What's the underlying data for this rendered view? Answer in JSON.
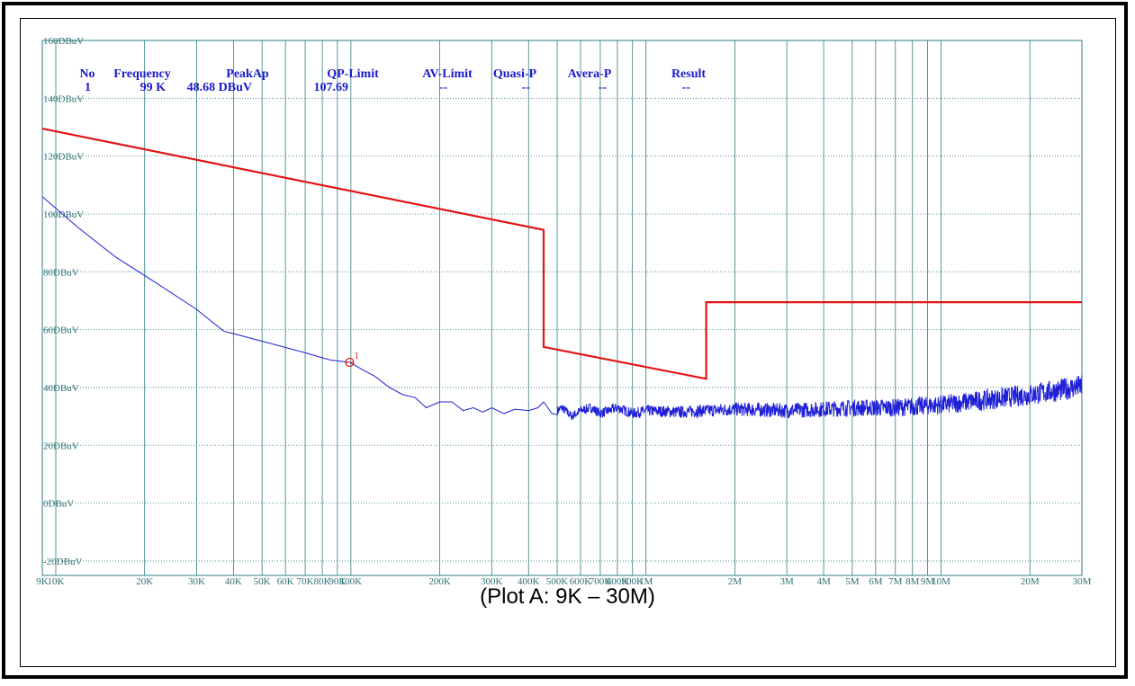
{
  "caption": "(Plot A: 9K – 30M)",
  "colors": {
    "grid": "#2f7d80",
    "tick_text": "#2f6f73",
    "trace": "#1f1fd6",
    "limit": "#e01616",
    "marker": "#e01616",
    "header": "#1a1acc"
  },
  "marker_table": {
    "headers": [
      "No",
      "Frequency",
      "PeakAp",
      "QP-Limit",
      "AV-Limit",
      "Quasi-P",
      "Avera-P",
      "Result"
    ],
    "rows": [
      [
        "1",
        "99 K",
        "48.68 DBuV",
        "107.69",
        "--",
        "--",
        "--",
        "--"
      ]
    ]
  },
  "chart_data": {
    "type": "line",
    "x_scale": "log",
    "x_unit": "Hz",
    "xlim": [
      9000,
      30000000
    ],
    "ylim": [
      -25,
      160
    ],
    "y_ticks": [
      {
        "value": 160,
        "label": "160DBuV"
      },
      {
        "value": 140,
        "label": "140DBuV"
      },
      {
        "value": 120,
        "label": "120DBuV"
      },
      {
        "value": 100,
        "label": "100DBuV"
      },
      {
        "value": 80,
        "label": "80DBuV"
      },
      {
        "value": 60,
        "label": "60DBuV"
      },
      {
        "value": 40,
        "label": "40DBuV"
      },
      {
        "value": 20,
        "label": "20DBuV"
      },
      {
        "value": 0,
        "label": "0DBuV"
      },
      {
        "value": -20,
        "label": "-20DBuV"
      }
    ],
    "x_ticks": [
      {
        "value": 9000,
        "label": "9K"
      },
      {
        "value": 10000,
        "label": "10K"
      },
      {
        "value": 20000,
        "label": "20K"
      },
      {
        "value": 30000,
        "label": "30K"
      },
      {
        "value": 40000,
        "label": "40K"
      },
      {
        "value": 50000,
        "label": "50K"
      },
      {
        "value": 60000,
        "label": "60K"
      },
      {
        "value": 70000,
        "label": "70K"
      },
      {
        "value": 80000,
        "label": "80K"
      },
      {
        "value": 90000,
        "label": "90K"
      },
      {
        "value": 100000,
        "label": "100K"
      },
      {
        "value": 200000,
        "label": "200K"
      },
      {
        "value": 300000,
        "label": "300K"
      },
      {
        "value": 400000,
        "label": "400K"
      },
      {
        "value": 500000,
        "label": "500K"
      },
      {
        "value": 600000,
        "label": "600K"
      },
      {
        "value": 700000,
        "label": "700K"
      },
      {
        "value": 800000,
        "label": "800K"
      },
      {
        "value": 900000,
        "label": "900K"
      },
      {
        "value": 1000000,
        "label": "1M"
      },
      {
        "value": 2000000,
        "label": "2M"
      },
      {
        "value": 3000000,
        "label": "3M"
      },
      {
        "value": 4000000,
        "label": "4M"
      },
      {
        "value": 5000000,
        "label": "5M"
      },
      {
        "value": 6000000,
        "label": "6M"
      },
      {
        "value": 7000000,
        "label": "7M"
      },
      {
        "value": 8000000,
        "label": "8M"
      },
      {
        "value": 9000000,
        "label": "9M"
      },
      {
        "value": 10000000,
        "label": "10M"
      },
      {
        "value": 20000000,
        "label": "20M"
      },
      {
        "value": 30000000,
        "label": "30M"
      }
    ],
    "grid": true,
    "series": [
      {
        "role": "limit",
        "segments": [
          [
            [
              9000,
              129.5
            ],
            [
              450000,
              94.5
            ]
          ],
          [
            [
              450000,
              94.5
            ],
            [
              450000,
              54
            ]
          ],
          [
            [
              450000,
              54
            ],
            [
              1600000,
              43
            ]
          ],
          [
            [
              1600000,
              43
            ],
            [
              1600000,
              69.5
            ]
          ],
          [
            [
              1600000,
              69.5
            ],
            [
              30000000,
              69.5
            ]
          ]
        ]
      },
      {
        "role": "trace",
        "points": [
          [
            9000,
            106
          ],
          [
            12000,
            95
          ],
          [
            16000,
            85
          ],
          [
            22000,
            76
          ],
          [
            30000,
            67
          ],
          [
            37000,
            59.5
          ],
          [
            50000,
            56
          ],
          [
            70000,
            52
          ],
          [
            85000,
            49.5
          ],
          [
            99000,
            48.7
          ],
          [
            110000,
            46
          ],
          [
            120000,
            44
          ],
          [
            135000,
            40
          ],
          [
            150000,
            37.5
          ],
          [
            165000,
            36.5
          ],
          [
            180000,
            33
          ],
          [
            200000,
            35
          ],
          [
            220000,
            35
          ],
          [
            240000,
            32
          ],
          [
            260000,
            33
          ],
          [
            280000,
            31.5
          ],
          [
            300000,
            33
          ],
          [
            330000,
            31
          ],
          [
            360000,
            32.5
          ],
          [
            400000,
            32
          ],
          [
            430000,
            33
          ],
          [
            450000,
            35
          ],
          [
            480000,
            31
          ],
          [
            520000,
            33
          ],
          [
            560000,
            30
          ],
          [
            600000,
            32
          ],
          [
            650000,
            33
          ],
          [
            700000,
            31
          ],
          [
            800000,
            33
          ],
          [
            900000,
            31
          ],
          [
            1000000,
            32
          ],
          [
            1300000,
            31.5
          ],
          [
            1600000,
            32
          ],
          [
            2000000,
            32.5
          ],
          [
            3000000,
            32
          ],
          [
            4000000,
            32.5
          ],
          [
            5000000,
            33
          ],
          [
            7000000,
            33
          ],
          [
            10000000,
            34
          ],
          [
            15000000,
            36
          ],
          [
            20000000,
            37.5
          ],
          [
            25000000,
            39
          ],
          [
            30000000,
            40.5
          ]
        ],
        "noise_start_hz": 500000,
        "noise_amplitude_db": [
          1.5,
          4
        ]
      }
    ],
    "markers": [
      {
        "label": "1",
        "x": 99000,
        "y": 48.68
      }
    ],
    "legend": "none"
  }
}
